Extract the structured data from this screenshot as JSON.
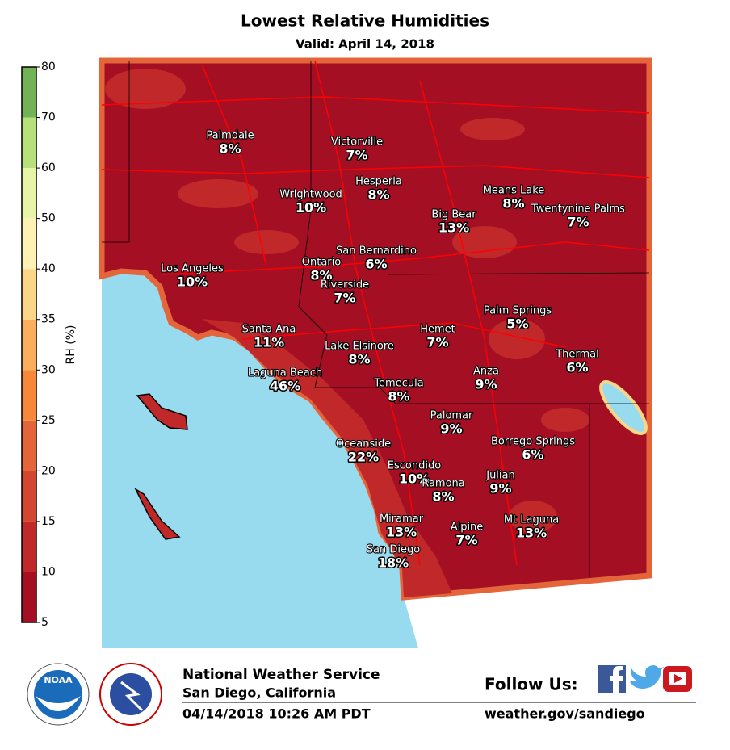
{
  "header": {
    "title": "Lowest Relative Humidities",
    "subtitle": "Valid: April 14, 2018"
  },
  "colorbar": {
    "label": "RH (%)",
    "ticks": [
      5,
      10,
      15,
      20,
      25,
      30,
      35,
      40,
      50,
      60,
      70,
      80
    ],
    "colors": [
      "#a50f24",
      "#c0282a",
      "#d3462f",
      "#e4653a",
      "#f7883a",
      "#fbae5c",
      "#fdd586",
      "#fff1b3",
      "#e8f5a6",
      "#b7e07a",
      "#72b356"
    ]
  },
  "cities": [
    {
      "name": "Palmdale",
      "value": "8%"
    },
    {
      "name": "Victorville",
      "value": "7%"
    },
    {
      "name": "Hesperia",
      "value": "8%"
    },
    {
      "name": "Wrightwood",
      "value": "10%"
    },
    {
      "name": "Means Lake",
      "value": "8%"
    },
    {
      "name": "Twentynine Palms",
      "value": "7%"
    },
    {
      "name": "Big Bear",
      "value": "13%"
    },
    {
      "name": "San Bernardino",
      "value": "6%"
    },
    {
      "name": "Ontario",
      "value": "8%"
    },
    {
      "name": "Los Angeles",
      "value": "10%"
    },
    {
      "name": "Riverside",
      "value": "7%"
    },
    {
      "name": "Palm Springs",
      "value": "5%"
    },
    {
      "name": "Santa Ana",
      "value": "11%"
    },
    {
      "name": "Hemet",
      "value": "7%"
    },
    {
      "name": "Lake Elsinore",
      "value": "8%"
    },
    {
      "name": "Thermal",
      "value": "6%"
    },
    {
      "name": "Laguna Beach",
      "value": "46%"
    },
    {
      "name": "Anza",
      "value": "9%"
    },
    {
      "name": "Temecula",
      "value": "8%"
    },
    {
      "name": "Palomar",
      "value": "9%"
    },
    {
      "name": "Borrego Springs",
      "value": "6%"
    },
    {
      "name": "Oceanside",
      "value": "22%"
    },
    {
      "name": "Escondido",
      "value": "10%"
    },
    {
      "name": "Ramona",
      "value": "8%"
    },
    {
      "name": "Julian",
      "value": "9%"
    },
    {
      "name": "Miramar",
      "value": "13%"
    },
    {
      "name": "Mt Laguna",
      "value": "13%"
    },
    {
      "name": "Alpine",
      "value": "7%"
    },
    {
      "name": "San Diego",
      "value": "18%"
    }
  ],
  "footer": {
    "agency": "National Weather Service",
    "office": "San Diego, California",
    "issued": "04/14/2018 10:26 AM PDT",
    "follow": "Follow Us:",
    "url": "weather.gov/sandiego",
    "noaa": "NOAA"
  }
}
